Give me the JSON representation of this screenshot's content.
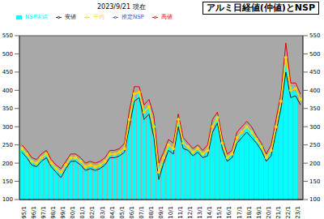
{
  "chart_data": {
    "type": "bar",
    "title": "アルミ日経値(仲値)とNSP",
    "subtitle": "2023/9/21 現在",
    "categories": [
      "95/1",
      null,
      "96/1",
      null,
      "97/1",
      null,
      "98/1",
      null,
      "99/1",
      null,
      "00/1",
      null,
      "01/1",
      null,
      "02/1",
      null,
      "03/1",
      null,
      "04/1",
      null,
      "05/1",
      null,
      "06/1",
      null,
      "07/1",
      null,
      "08/1",
      null,
      "09/1",
      null,
      "10/1",
      null,
      "11/1",
      null,
      "12/1",
      null,
      "13/1",
      null,
      "14/1",
      null,
      "15/1",
      null,
      "16/1",
      null,
      "17/1",
      null,
      "18/1",
      null,
      "19/1",
      null,
      "20/1",
      null,
      "21/1",
      null,
      "22/1",
      null,
      "23/1",
      null
    ],
    "ylim": [
      100,
      550
    ],
    "yticks": [
      100,
      150,
      200,
      250,
      300,
      350,
      400,
      450,
      500,
      550
    ],
    "grid": true,
    "legend": "top",
    "series": [
      {
        "name": "推定NSP",
        "type": "line",
        "line_style": "dashed",
        "color": "#3060c0",
        "values": [
          null,
          null,
          null,
          null,
          null,
          null,
          null,
          null,
          null,
          null,
          null,
          null,
          null,
          null,
          null,
          null,
          null,
          null,
          null,
          null,
          null,
          null,
          null,
          null,
          null,
          null,
          null,
          null,
          null,
          null,
          null,
          null,
          null,
          null,
          null,
          null,
          null,
          null,
          null,
          null,
          null,
          null,
          null,
          null,
          null,
          null,
          null,
          null,
          null,
          null,
          null,
          null,
          null,
          null,
          null,
          null,
          400,
          380
        ]
      },
      {
        "name": "NSP実績",
        "type": "bar",
        "color": "#00ffff",
        "values": [
          245,
          230,
          210,
          200,
          210,
          225,
          205,
          190,
          175,
          190,
          210,
          215,
          210,
          195,
          195,
          190,
          195,
          200,
          220,
          225,
          230,
          235,
          300,
          380,
          395,
          350,
          350,
          320,
          190,
          205,
          245,
          245,
          310,
          265,
          245,
          235,
          235,
          230,
          230,
          290,
          325,
          265,
          220,
          220,
          260,
          280,
          295,
          290,
          270,
          250,
          220,
          230,
          290,
          360,
          470,
          410,
          400,
          null
        ]
      },
      {
        "name": "高値",
        "type": "line",
        "line_style": "solid",
        "color": "#e00000",
        "values": [
          250,
          235,
          215,
          210,
          225,
          235,
          210,
          195,
          185,
          205,
          225,
          225,
          215,
          200,
          205,
          200,
          205,
          215,
          235,
          235,
          240,
          255,
          345,
          410,
          410,
          360,
          375,
          330,
          200,
          230,
          265,
          255,
          335,
          270,
          255,
          240,
          250,
          235,
          250,
          320,
          340,
          270,
          225,
          235,
          285,
          300,
          315,
          300,
          275,
          255,
          225,
          250,
          320,
          390,
          530,
          420,
          420,
          390
        ]
      },
      {
        "name": "安値",
        "type": "line",
        "line_style": "solid",
        "color": "#202020",
        "values": [
          230,
          215,
          195,
          190,
          205,
          215,
          190,
          175,
          160,
          185,
          205,
          205,
          195,
          180,
          185,
          180,
          185,
          195,
          215,
          215,
          220,
          230,
          300,
          370,
          380,
          320,
          335,
          270,
          155,
          200,
          235,
          225,
          300,
          240,
          235,
          220,
          230,
          215,
          220,
          285,
          310,
          240,
          205,
          215,
          255,
          270,
          285,
          270,
          255,
          235,
          205,
          220,
          285,
          350,
          450,
          380,
          385,
          360
        ]
      },
      {
        "name": "平均",
        "type": "line",
        "line_style": "solid",
        "marker": "circle",
        "color": "#ffd700",
        "values": [
          240,
          225,
          205,
          200,
          215,
          225,
          200,
          185,
          175,
          195,
          215,
          215,
          205,
          190,
          195,
          190,
          195,
          205,
          225,
          225,
          230,
          240,
          320,
          390,
          395,
          340,
          355,
          300,
          175,
          215,
          250,
          240,
          320,
          255,
          245,
          230,
          240,
          225,
          235,
          300,
          325,
          255,
          215,
          225,
          270,
          285,
          300,
          285,
          265,
          245,
          215,
          235,
          300,
          370,
          490,
          400,
          405,
          375
        ]
      }
    ]
  }
}
